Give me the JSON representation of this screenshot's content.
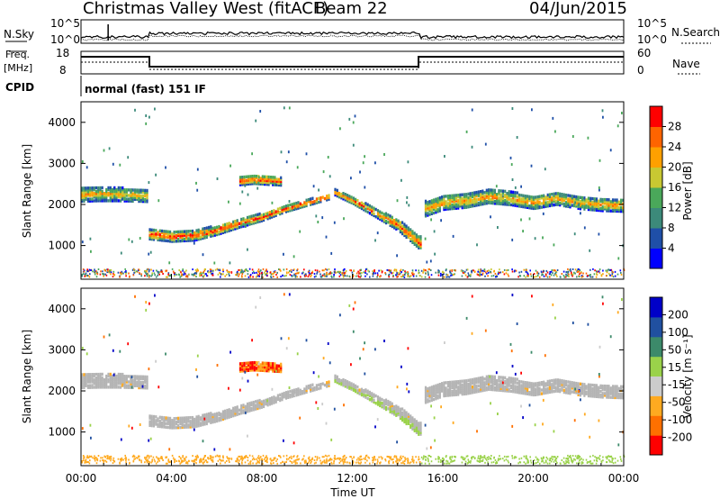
{
  "header": {
    "station": "Christmas Valley West (fitACF)",
    "beam": "Beam 22",
    "date": "04/Jun/2015"
  },
  "noise_panel": {
    "left_label": "N.Sky",
    "right_label": "N.Search",
    "left_ticks": [
      "10^5",
      "10^0"
    ],
    "right_ticks": [
      "10^5",
      "10^0"
    ]
  },
  "freq_panel": {
    "left_label_1": "Freq.",
    "left_label_2": "[MHz]",
    "right_label": "Nave",
    "left_ticks": [
      "18",
      "8"
    ],
    "right_ticks": [
      "60",
      "0"
    ]
  },
  "cpid": {
    "label": "CPID",
    "mode": "normal (fast) 151 IF"
  },
  "colors": {
    "power_scale": [
      "#0000ff",
      "#1f4fa8",
      "#3c8a7a",
      "#4aa85a",
      "#c8c832",
      "#ffa000",
      "#ff6400",
      "#ff0000"
    ],
    "velocity_scale": [
      "#ff0000",
      "#ff7000",
      "#ffaa20",
      "#cccccc",
      "#9ad24a",
      "#3c8a6a",
      "#2050a0",
      "#0000c8"
    ],
    "ground_scatter": "#b4b4b4"
  },
  "chart_data": [
    {
      "type": "heatmap",
      "panel": "power",
      "ylabel": "Slant Range [km]",
      "y_ticks": [
        "4000",
        "3000",
        "2000",
        "1000"
      ],
      "y_tick_values": [
        4000,
        3000,
        2000,
        1000
      ],
      "ylim": [
        180,
        4500
      ],
      "xlim_hours": [
        0,
        24
      ],
      "colorbar_label": "Power [dB]",
      "colorbar_ticks": [
        "28",
        "24",
        "20",
        "16",
        "12",
        "8",
        "4"
      ],
      "colorbar_tick_values": [
        28,
        24,
        20,
        16,
        12,
        8,
        4
      ],
      "colorbar_range": [
        0,
        32
      ],
      "bands": [
        {
          "t": [
            0.0,
            0.8,
            1.6,
            2.4,
            2.9
          ],
          "center": [
            2250,
            2260,
            2250,
            2230,
            2220
          ],
          "half": [
            170,
            170,
            160,
            150,
            150
          ],
          "peak_db": 22
        },
        {
          "t": [
            3.0,
            4.0,
            5.0,
            6.0,
            7.0,
            8.0,
            9.0,
            10.0,
            11.0
          ],
          "center": [
            1280,
            1220,
            1250,
            1380,
            1550,
            1700,
            1900,
            2050,
            2200
          ],
          "half": [
            120,
            120,
            120,
            110,
            100,
            90,
            80,
            70,
            60
          ],
          "peak_db": 30
        },
        {
          "t": [
            7.0,
            7.6,
            8.2,
            8.8
          ],
          "center": [
            2580,
            2620,
            2600,
            2560
          ],
          "half": [
            100,
            110,
            110,
            90
          ],
          "peak_db": 30
        },
        {
          "t": [
            11.2,
            12.0,
            13.0,
            14.0,
            15.0
          ],
          "center": [
            2300,
            2100,
            1800,
            1500,
            1050
          ],
          "half": [
            70,
            80,
            100,
            130,
            160
          ],
          "peak_db": 28
        },
        {
          "t": [
            15.2,
            16.0,
            17.0,
            18.0,
            19.0,
            20.0,
            21.0,
            22.0,
            23.0,
            24.0
          ],
          "center": [
            1900,
            2050,
            2100,
            2200,
            2150,
            2050,
            2150,
            2050,
            2000,
            1980
          ],
          "half": [
            180,
            170,
            170,
            160,
            160,
            150,
            150,
            150,
            150,
            150
          ],
          "peak_db": 24
        }
      ]
    },
    {
      "type": "heatmap",
      "panel": "velocity",
      "ylabel": "Slant Range [km]",
      "xlabel": "Time UT",
      "x_ticks": [
        "00:00",
        "04:00",
        "08:00",
        "12:00",
        "16:00",
        "20:00",
        "00:00"
      ],
      "x_tick_hours": [
        0,
        4,
        8,
        12,
        16,
        20,
        24
      ],
      "y_ticks": [
        "4000",
        "3000",
        "2000",
        "1000"
      ],
      "y_tick_values": [
        4000,
        3000,
        2000,
        1000
      ],
      "ylim": [
        180,
        4500
      ],
      "colorbar_label": "Velocity [m s⁻¹]",
      "colorbar_ticks": [
        "200",
        "100",
        "50",
        "15",
        "-15",
        "-50",
        "-100",
        "-200"
      ],
      "colorbar_range": [
        -250,
        250
      ],
      "notes": "ground scatter shown in grey; ionospheric echoes near 08:00 at ~2600 km show -200..+50 m/s"
    }
  ]
}
